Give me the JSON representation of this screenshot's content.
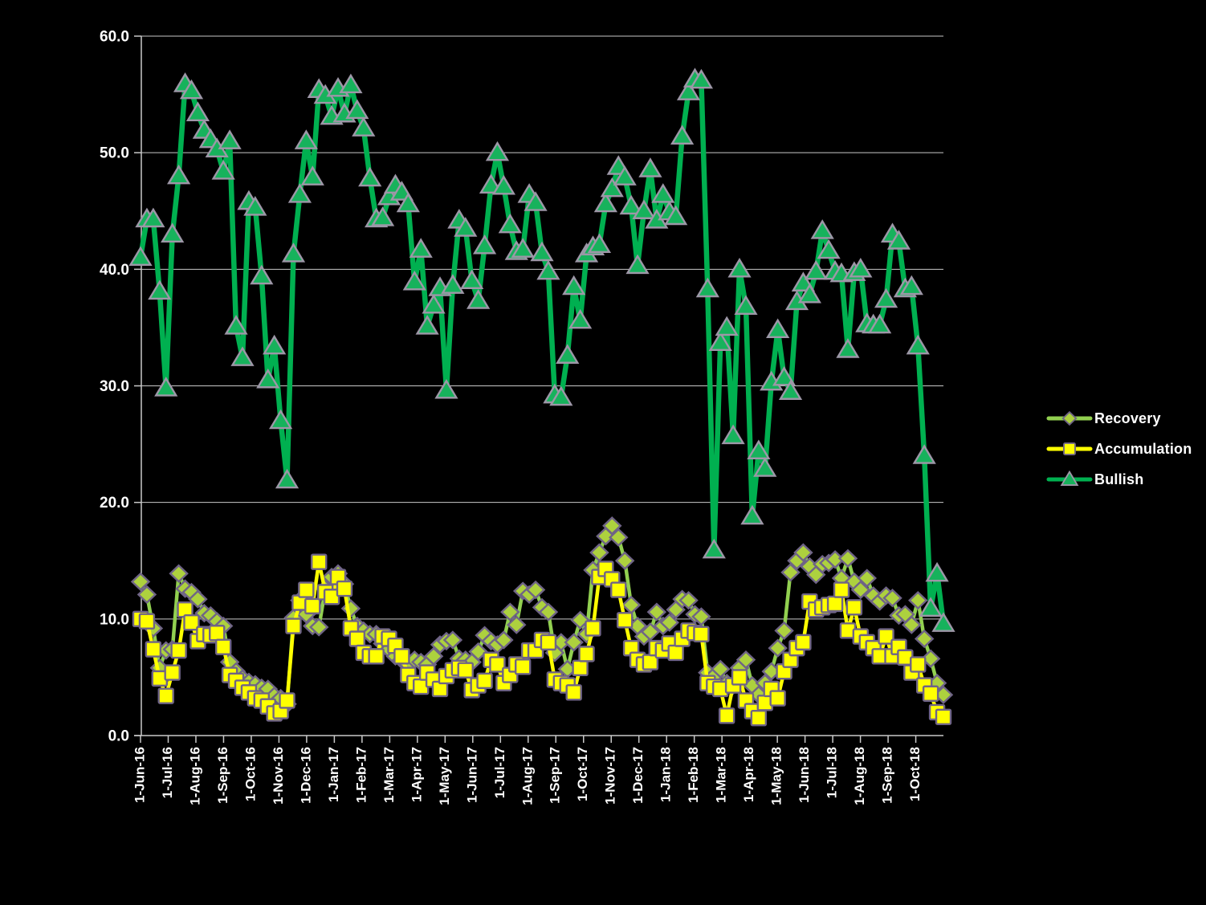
{
  "page": {
    "background_color": "#000000",
    "grid_color": "#C9C9C9",
    "axis_text_color": "#FFFFFF"
  },
  "legend": {
    "position": "right",
    "items": [
      {
        "label": "Recovery"
      },
      {
        "label": "Accumulation"
      },
      {
        "label": "Bullish"
      }
    ]
  },
  "chart_data": {
    "type": "line",
    "title": "",
    "frequency": "weekly",
    "grid": true,
    "legend_position": "right",
    "ylim": [
      0,
      60
    ],
    "y_axis": {
      "tick_labels": [
        "0.0",
        "10.0",
        "20.0",
        "30.0",
        "40.0",
        "50.0",
        "60.0"
      ]
    },
    "x_axis": {
      "tick_labels": [
        "1-Jun-16",
        "1-Jul-16",
        "1-Aug-16",
        "1-Sep-16",
        "1-Oct-16",
        "1-Nov-16",
        "1-Dec-16",
        "1-Jan-17",
        "1-Feb-17",
        "1-Mar-17",
        "1-Apr-17",
        "1-May-17",
        "1-Jun-17",
        "1-Jul-17",
        "1-Aug-17",
        "1-Sep-17",
        "1-Oct-17",
        "1-Nov-17",
        "1-Dec-17",
        "1-Jan-18",
        "1-Feb-18",
        "1-Mar-18",
        "1-Apr-18",
        "1-May-18",
        "1-Jun-18",
        "1-Jul-18",
        "1-Aug-18",
        "1-Sep-18",
        "1-Oct-18"
      ]
    },
    "series": [
      {
        "name": "Recovery",
        "marker": "diamond",
        "line_color": "#92D050",
        "marker_fill": "#ADD13E",
        "marker_stroke": "#6F6486",
        "line_width": 4.5,
        "values": [
          13.2,
          12.1,
          9.2,
          5.8,
          7.3,
          7.4,
          13.9,
          12.6,
          12.3,
          11.7,
          10.5,
          10.3,
          9.8,
          9.4,
          6.3,
          5.5,
          4.9,
          4.6,
          4.4,
          4.1,
          4.0,
          3.4,
          3.2,
          2.7,
          10.1,
          11.6,
          10.4,
          9.4,
          9.3,
          12.6,
          13.6,
          13.9,
          13.0,
          10.9,
          9.4,
          9.0,
          8.7,
          8.7,
          7.9,
          7.4,
          6.8,
          6.5,
          6.1,
          6.5,
          6.3,
          6.1,
          6.8,
          7.8,
          8.1,
          8.2,
          6.6,
          6.5,
          6.3,
          7.2,
          8.6,
          8.1,
          7.8,
          8.2,
          10.6,
          9.5,
          12.4,
          12.1,
          12.5,
          11.0,
          10.6,
          7.1,
          8.0,
          5.7,
          8.0,
          9.9,
          8.7,
          14.2,
          15.7,
          17.1,
          18.0,
          17.0,
          15.0,
          11.2,
          9.4,
          8.5,
          8.9,
          10.6,
          9.4,
          9.7,
          10.8,
          11.7,
          11.6,
          10.4,
          10.2,
          5.4,
          5.1,
          5.7,
          4.5,
          4.3,
          5.8,
          6.5,
          4.3,
          3.5,
          4.5,
          5.5,
          7.5,
          9.0,
          14.0,
          15.0,
          15.7,
          14.5,
          13.8,
          14.7,
          14.8,
          15.1,
          13.5,
          15.2,
          13.2,
          12.5,
          13.5,
          12.0,
          11.5,
          12.0,
          11.8,
          10.3,
          10.4,
          9.5,
          11.6,
          8.3,
          6.6,
          4.5,
          3.5
        ]
      },
      {
        "name": "Accumulation",
        "marker": "square",
        "line_color": "#FFFF00",
        "marker_fill": "#FFFF00",
        "marker_stroke": "#6F6486",
        "line_width": 4.5,
        "values": [
          10.0,
          9.8,
          7.4,
          4.9,
          3.4,
          5.4,
          7.3,
          10.8,
          9.7,
          8.1,
          8.7,
          8.6,
          8.8,
          7.6,
          5.2,
          4.7,
          4.1,
          3.7,
          3.2,
          3.0,
          2.5,
          1.9,
          2.1,
          3.0,
          9.4,
          11.4,
          12.5,
          11.1,
          14.9,
          12.3,
          11.9,
          13.6,
          12.6,
          9.2,
          8.3,
          7.1,
          6.8,
          6.8,
          8.5,
          8.3,
          7.7,
          6.8,
          5.2,
          4.5,
          4.2,
          5.4,
          4.8,
          4.0,
          5.1,
          5.6,
          5.8,
          5.6,
          3.9,
          4.3,
          4.7,
          6.5,
          6.1,
          4.5,
          5.2,
          6.1,
          5.9,
          7.3,
          7.3,
          8.2,
          8.0,
          4.8,
          4.5,
          4.3,
          3.7,
          5.8,
          7.0,
          9.2,
          13.6,
          14.3,
          13.4,
          12.5,
          9.9,
          7.5,
          6.5,
          6.1,
          6.3,
          7.5,
          7.3,
          7.9,
          7.1,
          8.3,
          9.0,
          8.8,
          8.7,
          4.5,
          4.2,
          4.0,
          1.7,
          4.3,
          5.0,
          3.0,
          2.1,
          1.5,
          2.8,
          4.0,
          3.2,
          5.5,
          6.5,
          7.5,
          8.0,
          11.5,
          10.8,
          11.0,
          11.2,
          11.3,
          12.5,
          9.0,
          11.0,
          8.5,
          8.0,
          7.5,
          6.8,
          8.5,
          6.8,
          7.6,
          6.7,
          5.4,
          6.1,
          4.3,
          3.6,
          2.0,
          1.6
        ]
      },
      {
        "name": "Bullish",
        "marker": "triangle",
        "line_color": "#00B050",
        "marker_fill": "#17B25C",
        "marker_stroke": "#9D97A7",
        "line_width": 6.5,
        "values": [
          41.0,
          44.3,
          44.3,
          38.1,
          29.8,
          43.0,
          48.0,
          55.9,
          55.3,
          53.4,
          51.9,
          51.1,
          50.3,
          48.4,
          51.0,
          35.1,
          32.4,
          45.8,
          45.3,
          39.4,
          30.5,
          33.4,
          27.0,
          21.9,
          41.3,
          46.4,
          51.0,
          47.9,
          55.4,
          54.9,
          53.1,
          55.5,
          53.3,
          55.8,
          53.6,
          52.1,
          47.8,
          44.3,
          44.4,
          46.2,
          47.2,
          46.6,
          45.6,
          38.9,
          41.7,
          35.1,
          36.9,
          38.4,
          29.6,
          38.6,
          44.2,
          43.5,
          39.0,
          37.3,
          42.0,
          47.2,
          50.0,
          47.1,
          43.8,
          41.5,
          41.7,
          46.4,
          45.7,
          41.4,
          39.8,
          29.2,
          29.0,
          32.6,
          38.5,
          35.6,
          41.3,
          41.9,
          42.1,
          45.6,
          46.9,
          48.8,
          47.9,
          45.4,
          40.3,
          45.0,
          48.6,
          44.2,
          46.4,
          44.9,
          44.5,
          51.4,
          55.2,
          56.3,
          56.2,
          38.3,
          15.9,
          33.7,
          35.0,
          25.7,
          40.0,
          36.8,
          18.8,
          24.4,
          22.9,
          30.3,
          34.8,
          30.7,
          29.5,
          37.2,
          38.8,
          37.8,
          39.8,
          43.3,
          41.6,
          39.8,
          39.6,
          33.1,
          39.7,
          40.0,
          35.3,
          35.2,
          35.2,
          37.4,
          43.0,
          42.4,
          38.3,
          38.5,
          33.4,
          24.0,
          10.9,
          13.9,
          9.6
        ]
      }
    ]
  }
}
